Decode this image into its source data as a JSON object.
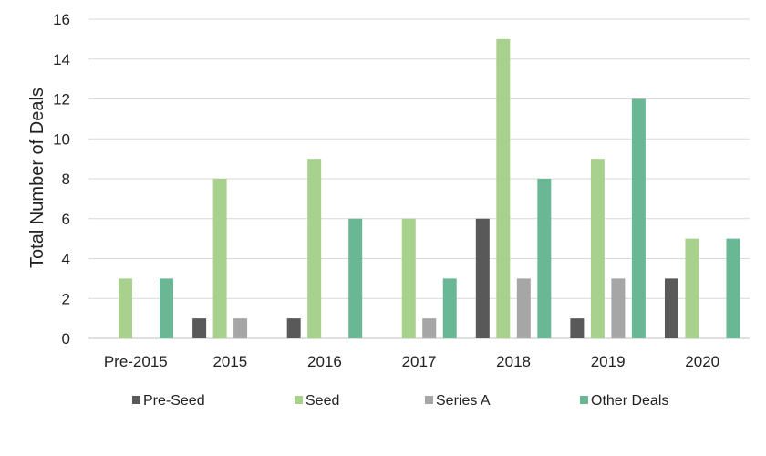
{
  "chart_data": {
    "type": "bar",
    "categories": [
      "Pre-2015",
      "2015",
      "2016",
      "2017",
      "2018",
      "2019",
      "2020"
    ],
    "series": [
      {
        "name": "Pre-Seed",
        "color": "#595959",
        "values": [
          0,
          1,
          1,
          0,
          6,
          1,
          3
        ]
      },
      {
        "name": "Seed",
        "color": "#a9d18e",
        "values": [
          3,
          8,
          9,
          6,
          15,
          9,
          5
        ]
      },
      {
        "name": "Series A",
        "color": "#a6a6a6",
        "values": [
          0,
          1,
          0,
          1,
          3,
          3,
          0
        ]
      },
      {
        "name": "Other Deals",
        "color": "#6ab796",
        "values": [
          3,
          0,
          6,
          3,
          8,
          12,
          5
        ]
      }
    ],
    "ylabel": "Total Number of Deals",
    "xlabel": "",
    "ylim": [
      0,
      16
    ],
    "yticks": [
      "0",
      "2",
      "4",
      "6",
      "8",
      "10",
      "12",
      "14",
      "16"
    ],
    "grid": true,
    "legend": "bottom"
  }
}
